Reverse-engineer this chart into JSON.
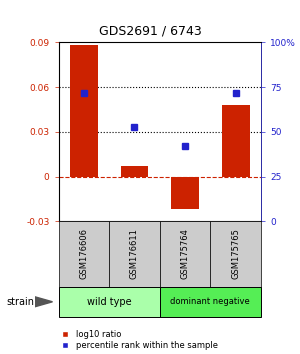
{
  "title": "GDS2691 / 6743",
  "samples": [
    "GSM176606",
    "GSM176611",
    "GSM175764",
    "GSM175765"
  ],
  "log10_ratio": [
    0.088,
    0.007,
    -0.022,
    0.048
  ],
  "percentile_rank": [
    0.72,
    0.525,
    0.42,
    0.72
  ],
  "ylim_left": [
    -0.03,
    0.09
  ],
  "ylim_right": [
    0,
    1.0
  ],
  "yticks_left": [
    -0.03,
    0,
    0.03,
    0.06,
    0.09
  ],
  "yticks_right": [
    0,
    0.25,
    0.5,
    0.75,
    1.0
  ],
  "ytick_labels_right": [
    "0",
    "25",
    "50",
    "75",
    "100%"
  ],
  "ytick_labels_left": [
    "-0.03",
    "0",
    "0.03",
    "0.06",
    "0.09"
  ],
  "hlines_dotted": [
    0.06,
    0.03
  ],
  "hline_dashed": 0,
  "bar_color": "#cc2200",
  "dot_color": "#2222cc",
  "left_tick_color": "#cc2200",
  "right_tick_color": "#2222cc",
  "groups": [
    {
      "label": "wild type",
      "samples": [
        0,
        1
      ],
      "color": "#aaffaa"
    },
    {
      "label": "dominant negative",
      "samples": [
        2,
        3
      ],
      "color": "#55ee55"
    }
  ],
  "strain_label": "strain",
  "legend_ratio_label": "log10 ratio",
  "legend_rank_label": "percentile rank within the sample",
  "background_color": "#ffffff",
  "sample_box_color": "#cccccc",
  "bar_width": 0.55
}
